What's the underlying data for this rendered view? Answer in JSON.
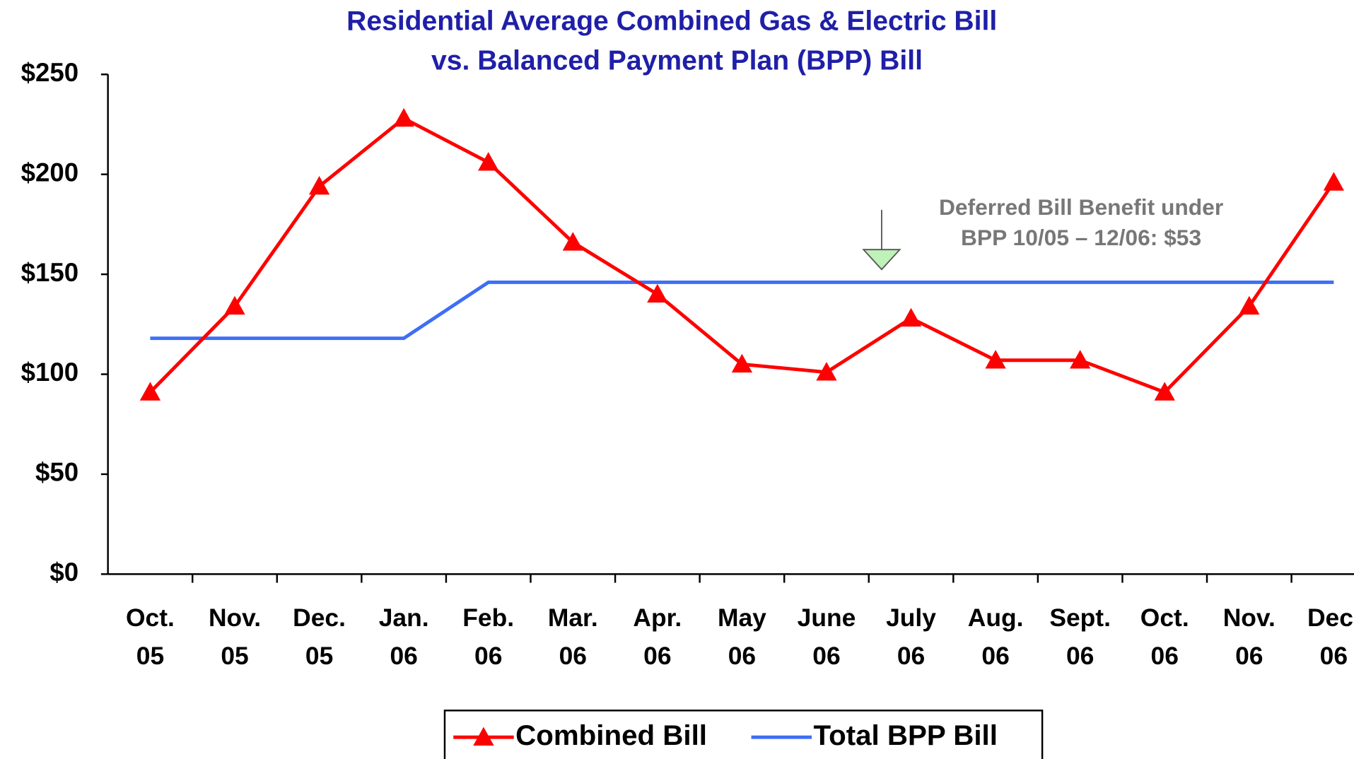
{
  "chart_data": {
    "type": "line",
    "title": [
      "Residential Average Combined Gas & Electric Bill",
      "vs. Balanced Payment Plan (BPP) Bill"
    ],
    "categories": [
      "Oct. 05",
      "Nov. 05",
      "Dec. 05",
      "Jan. 06",
      "Feb. 06",
      "Mar. 06",
      "Apr. 06",
      "May 06",
      "June 06",
      "July 06",
      "Aug. 06",
      "Sept. 06",
      "Oct. 06",
      "Nov. 06",
      "Dec. 06"
    ],
    "series": [
      {
        "name": "Combined Bill",
        "color": "#ff0000",
        "marker": "triangle",
        "values": [
          91,
          134,
          194,
          228,
          206,
          166,
          140,
          105,
          101,
          128,
          107,
          107,
          91,
          134,
          196
        ]
      },
      {
        "name": "Total BPP Bill",
        "color": "#3d6ef5",
        "values": [
          118,
          118,
          118,
          118,
          146,
          146,
          146,
          146,
          146,
          146,
          146,
          146,
          146,
          146,
          146
        ]
      }
    ],
    "ylim": [
      0,
      250
    ],
    "yticks": [
      {
        "value": 0,
        "label": "$0"
      },
      {
        "value": 50,
        "label": "$50"
      },
      {
        "value": 100,
        "label": "$100"
      },
      {
        "value": 150,
        "label": "$150"
      },
      {
        "value": 200,
        "label": "$200"
      },
      {
        "value": 250,
        "label": "$250"
      }
    ],
    "annotation": [
      "Deferred Bill Benefit under",
      "BPP 10/05 – 12/06:  $53"
    ],
    "legend": "bottom"
  }
}
